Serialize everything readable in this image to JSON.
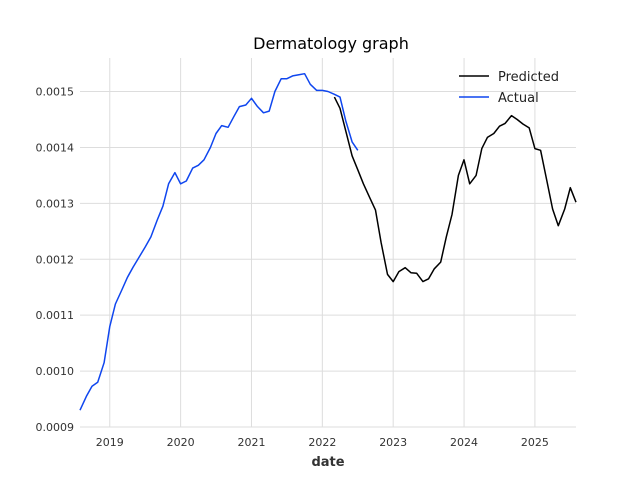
{
  "chart_data": {
    "type": "line",
    "title": "Dermatology graph",
    "xlabel": "date",
    "ylabel": "",
    "xlim": [
      2018.58,
      2025.58
    ],
    "ylim": [
      0.0009,
      0.00156
    ],
    "x_ticks": [
      2019,
      2020,
      2021,
      2022,
      2023,
      2024,
      2025
    ],
    "x_tick_labels": [
      "2019",
      "2020",
      "2021",
      "2022",
      "2023",
      "2024",
      "2025"
    ],
    "y_ticks": [
      0.0009,
      0.001,
      0.0011,
      0.0012,
      0.0013,
      0.0014,
      0.0015
    ],
    "y_tick_labels": [
      "0.0009",
      "0.0010",
      "0.0011",
      "0.0012",
      "0.0013",
      "0.0014",
      "0.0015"
    ],
    "grid": true,
    "legend_position": "top-right",
    "series": [
      {
        "name": "Predicted",
        "color": "#000000",
        "x": [
          2022.17,
          2022.25,
          2022.33,
          2022.42,
          2022.5,
          2022.58,
          2022.67,
          2022.75,
          2022.83,
          2022.92,
          2023.0,
          2023.08,
          2023.17,
          2023.25,
          2023.33,
          2023.42,
          2023.5,
          2023.58,
          2023.67,
          2023.75,
          2023.83,
          2023.92,
          2024.0,
          2024.08,
          2024.17,
          2024.25,
          2024.33,
          2024.42,
          2024.5,
          2024.58,
          2024.67,
          2024.75,
          2024.83,
          2024.92,
          2025.0,
          2025.08,
          2025.17,
          2025.25,
          2025.33,
          2025.42,
          2025.5,
          2025.58
        ],
        "y": [
          0.00149,
          0.00147,
          0.00143,
          0.001385,
          0.00136,
          0.001335,
          0.00131,
          0.001288,
          0.00123,
          0.001173,
          0.00116,
          0.001178,
          0.001185,
          0.001176,
          0.001175,
          0.00116,
          0.001165,
          0.001183,
          0.001195,
          0.00124,
          0.00128,
          0.00135,
          0.001378,
          0.001335,
          0.00135,
          0.001398,
          0.001418,
          0.001425,
          0.001438,
          0.001443,
          0.001457,
          0.00145,
          0.001442,
          0.001435,
          0.001398,
          0.001395,
          0.00134,
          0.00129,
          0.00126,
          0.00129,
          0.001328,
          0.001302
        ]
      },
      {
        "name": "Actual",
        "color": "#0f46ef",
        "x": [
          2018.58,
          2018.67,
          2018.75,
          2018.83,
          2018.92,
          2019.0,
          2019.08,
          2019.17,
          2019.25,
          2019.33,
          2019.42,
          2019.5,
          2019.58,
          2019.67,
          2019.75,
          2019.83,
          2019.92,
          2020.0,
          2020.08,
          2020.17,
          2020.25,
          2020.33,
          2020.42,
          2020.5,
          2020.58,
          2020.67,
          2020.75,
          2020.83,
          2020.92,
          2021.0,
          2021.08,
          2021.17,
          2021.25,
          2021.33,
          2021.42,
          2021.5,
          2021.58,
          2021.67,
          2021.75,
          2021.83,
          2021.92,
          2022.0,
          2022.08,
          2022.17,
          2022.25,
          2022.33,
          2022.42,
          2022.5
        ],
        "y": [
          0.00093,
          0.000955,
          0.000973,
          0.00098,
          0.001015,
          0.00108,
          0.00112,
          0.001145,
          0.001168,
          0.001186,
          0.001205,
          0.001222,
          0.00124,
          0.00127,
          0.001295,
          0.001335,
          0.001355,
          0.001335,
          0.00134,
          0.001363,
          0.001368,
          0.001378,
          0.0014,
          0.001425,
          0.001439,
          0.001436,
          0.001455,
          0.001473,
          0.001476,
          0.001488,
          0.001474,
          0.001462,
          0.001465,
          0.0015,
          0.001523,
          0.001523,
          0.001528,
          0.00153,
          0.001532,
          0.001513,
          0.001502,
          0.001502,
          0.0015,
          0.001495,
          0.00149,
          0.001448,
          0.00141,
          0.001395
        ]
      }
    ]
  }
}
